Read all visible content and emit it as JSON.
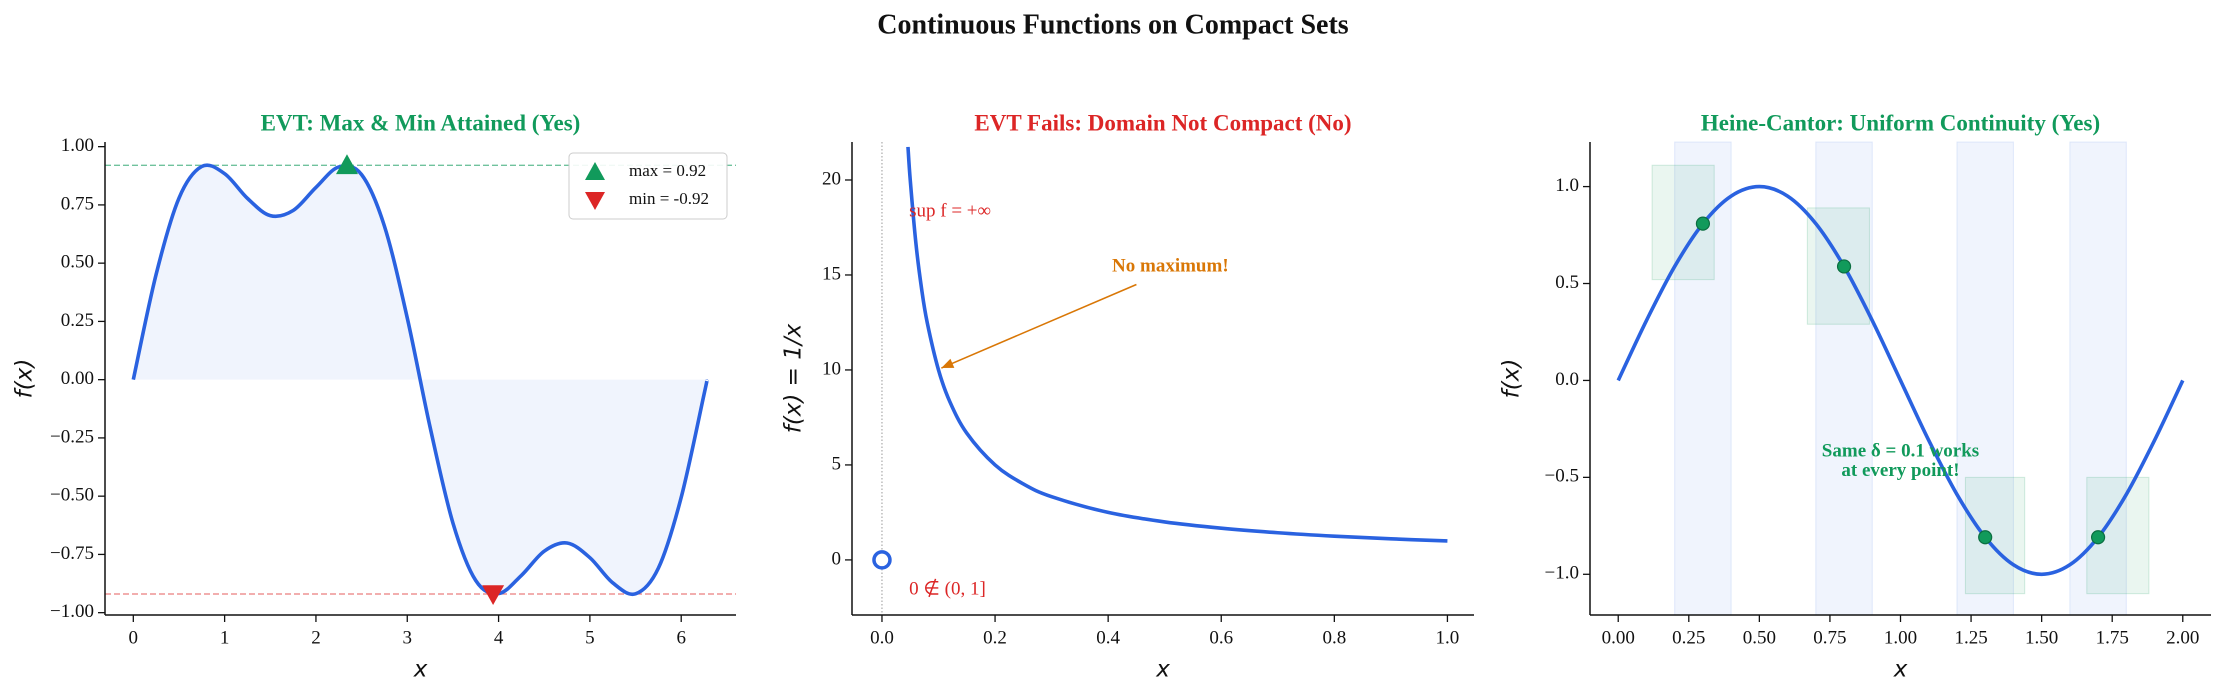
{
  "title": "Continuous Functions on Compact Sets",
  "chart_data": [
    {
      "type": "line",
      "title": "EVT: Max & Min Attained (Yes)",
      "title_color": "#119a5b",
      "xlabel": "x",
      "ylabel": "f(x)",
      "xlim": [
        -0.31,
        6.6
      ],
      "ylim": [
        -1.01,
        1.02
      ],
      "xticks": [
        0,
        1,
        2,
        3,
        4,
        5,
        6
      ],
      "yticks": [
        {
          "value": -1,
          "label": "−1.00"
        },
        {
          "value": -0.75,
          "label": "−0.75"
        },
        {
          "value": -0.5,
          "label": "−0.50"
        },
        {
          "value": -0.25,
          "label": "−0.25"
        },
        {
          "value": 0,
          "label": "0.00"
        },
        {
          "value": 0.25,
          "label": "0.25"
        },
        {
          "value": 0.5,
          "label": "0.50"
        },
        {
          "value": 0.75,
          "label": "0.75"
        },
        {
          "value": 1,
          "label": "1.00"
        }
      ],
      "x": [
        0,
        0.25,
        0.5,
        0.75,
        1,
        1.25,
        1.5,
        1.75,
        2,
        2.25,
        2.5,
        2.75,
        3,
        3.25,
        3.5,
        3.75,
        4,
        4.25,
        4.5,
        4.75,
        5,
        5.25,
        5.5,
        5.75,
        6,
        6.25,
        6.28
      ],
      "series": [
        {
          "color": "#2a62e0",
          "fill": true,
          "values": [
            0,
            0.452,
            0.779,
            0.915,
            0.884,
            0.778,
            0.704,
            0.726,
            0.825,
            0.913,
            0.88,
            0.659,
            0.265,
            -0.204,
            -0.615,
            -0.862,
            -0.918,
            -0.84,
            -0.736,
            -0.701,
            -0.764,
            -0.872,
            -0.919,
            -0.809,
            -0.505,
            -0.063,
            -0.006
          ]
        }
      ],
      "hlines": [
        {
          "y": 0.92,
          "color": "#119a5b"
        },
        {
          "y": -0.92,
          "color": "#dc2626"
        }
      ],
      "markers": [
        {
          "name": "max = 0.92",
          "x": 2.34,
          "y": 0.92,
          "color": "#119a5b",
          "shape": "up"
        },
        {
          "name": "min = -0.92",
          "x": 3.94,
          "y": -0.92,
          "color": "#dc2626",
          "shape": "down"
        }
      ],
      "legend": "upper right"
    },
    {
      "type": "line",
      "title": "EVT Fails: Domain Not Compact (No)",
      "title_color": "#dc2626",
      "xlabel": "x",
      "ylabel": "f(x) = 1/x",
      "xlim": [
        -0.053,
        1.047
      ],
      "ylim": [
        -2.9,
        22
      ],
      "xticks": [
        {
          "value": 0,
          "label": "0.0"
        },
        {
          "value": 0.2,
          "label": "0.2"
        },
        {
          "value": 0.4,
          "label": "0.4"
        },
        {
          "value": 0.6,
          "label": "0.6"
        },
        {
          "value": 0.8,
          "label": "0.8"
        },
        {
          "value": 1,
          "label": "1.0"
        }
      ],
      "yticks": [
        0,
        5,
        10,
        15,
        20
      ],
      "x": [
        0.046,
        0.05,
        0.06,
        0.07,
        0.08,
        0.1,
        0.12,
        0.15,
        0.2,
        0.25,
        0.3,
        0.4,
        0.5,
        0.6,
        0.7,
        0.8,
        0.9,
        1
      ],
      "series": [
        {
          "color": "#2a62e0",
          "values": [
            21.74,
            20,
            16.67,
            14.29,
            12.5,
            10,
            8.33,
            6.67,
            5,
            4,
            3.33,
            2.5,
            2,
            1.67,
            1.43,
            1.25,
            1.11,
            1
          ]
        }
      ],
      "vlines": [
        {
          "x": 0,
          "color": "#999999"
        }
      ],
      "open_points": [
        {
          "x": 0,
          "y": 0,
          "color": "#2a62e0"
        }
      ],
      "annotations": [
        {
          "text": "sup f = +∞",
          "x": 0.048,
          "y": 18.3,
          "color": "#dc2626"
        },
        {
          "text": "0 ∉ (0, 1]",
          "x": 0.048,
          "y": -1.6,
          "color": "#dc2626"
        },
        {
          "text": "No maximum!",
          "x": 0.51,
          "y": 15.4,
          "color": "#d97706",
          "bold": true,
          "ha": "center",
          "arrow_from": [
            0.45,
            14.5
          ],
          "arrow_to": [
            0.105,
            10.1
          ]
        }
      ]
    },
    {
      "type": "line",
      "title": "Heine-Cantor: Uniform Continuity (Yes)",
      "title_color": "#119a5b",
      "xlabel": "x",
      "ylabel": "f(x)",
      "xlim": [
        -0.1,
        2.1
      ],
      "ylim": [
        -1.21,
        1.23
      ],
      "xticks": [
        {
          "value": 0,
          "label": "0.00"
        },
        {
          "value": 0.25,
          "label": "0.25"
        },
        {
          "value": 0.5,
          "label": "0.50"
        },
        {
          "value": 0.75,
          "label": "0.75"
        },
        {
          "value": 1,
          "label": "1.00"
        },
        {
          "value": 1.25,
          "label": "1.25"
        },
        {
          "value": 1.5,
          "label": "1.50"
        },
        {
          "value": 1.75,
          "label": "1.75"
        },
        {
          "value": 2,
          "label": "2.00"
        }
      ],
      "yticks": [
        {
          "value": -1,
          "label": "−1.0"
        },
        {
          "value": -0.5,
          "label": "−0.5"
        },
        {
          "value": 0,
          "label": "0.0"
        },
        {
          "value": 0.5,
          "label": "0.5"
        },
        {
          "value": 1,
          "label": "1.0"
        }
      ],
      "x": [
        0,
        0.1,
        0.2,
        0.3,
        0.4,
        0.5,
        0.6,
        0.7,
        0.8,
        0.9,
        1,
        1.1,
        1.2,
        1.3,
        1.4,
        1.5,
        1.6,
        1.7,
        1.8,
        1.9,
        2
      ],
      "series": [
        {
          "color": "#2a62e0",
          "values": [
            0,
            0.309,
            0.588,
            0.809,
            0.951,
            1,
            0.951,
            0.809,
            0.588,
            0.309,
            0,
            -0.309,
            -0.588,
            -0.809,
            -0.951,
            -1,
            -0.951,
            -0.809,
            -0.588,
            -0.309,
            0
          ]
        }
      ],
      "spans": [
        [
          0.2,
          0.4
        ],
        [
          0.7,
          0.9
        ],
        [
          1.2,
          1.4
        ],
        [
          1.6,
          1.8
        ]
      ],
      "span_color": "#2a62e0",
      "boxes": [
        {
          "x": [
            0.12,
            0.34
          ],
          "y": [
            0.52,
            1.11
          ]
        },
        {
          "x": [
            0.67,
            0.89
          ],
          "y": [
            0.29,
            0.89
          ]
        },
        {
          "x": [
            1.23,
            1.44
          ],
          "y": [
            -1.1,
            -0.5
          ]
        },
        {
          "x": [
            1.66,
            1.88
          ],
          "y": [
            -1.1,
            -0.5
          ]
        }
      ],
      "box_color": "#119a5b",
      "points": {
        "x": [
          0.3,
          0.8,
          1.3,
          1.7
        ],
        "y": [
          0.809,
          0.588,
          -0.809,
          -0.809
        ],
        "color": "#119a5b"
      },
      "annotations": [
        {
          "text": "Same δ = 0.1 works",
          "x": 1,
          "y": -0.37,
          "color": "#119a5b",
          "bold": true,
          "ha": "center"
        },
        {
          "text": "at every point!",
          "x": 1,
          "y": -0.47,
          "color": "#119a5b",
          "bold": true,
          "ha": "center"
        }
      ]
    }
  ]
}
